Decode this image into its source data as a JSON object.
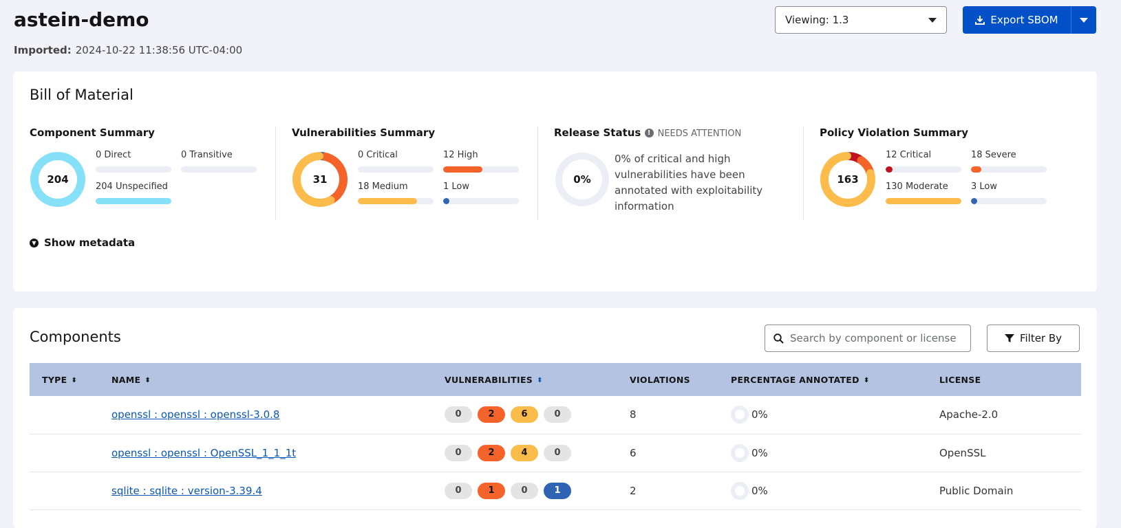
{
  "header": {
    "title": "astein-demo",
    "imported_label": "Imported:",
    "imported_value": "2024-10-22 11:38:56 UTC-04:00",
    "viewing": "Viewing: 1.3",
    "export_label": "Export SBOM"
  },
  "bom": {
    "title": "Bill of Material",
    "show_metadata": "Show metadata",
    "component_summary": {
      "title": "Component Summary",
      "total": "204",
      "items": [
        {
          "label": "0 Direct",
          "value": 0,
          "color": "#86e0f8"
        },
        {
          "label": "0 Transitive",
          "value": 0,
          "color": "#86e0f8"
        },
        {
          "label": "204 Unspecified",
          "value": 204,
          "color": "#86e0f8"
        }
      ],
      "max": 204
    },
    "vulnerabilities_summary": {
      "title": "Vulnerabilities Summary",
      "total": "31",
      "items": [
        {
          "label": "0 Critical",
          "value": 0,
          "color": "#c0131f"
        },
        {
          "label": "12 High",
          "value": 12,
          "color": "#f4632a"
        },
        {
          "label": "18 Medium",
          "value": 18,
          "color": "#fcbc4c"
        },
        {
          "label": "1 Low",
          "value": 1,
          "color": "#2f63b3"
        }
      ],
      "max": 23
    },
    "release_status": {
      "title": "Release Status",
      "status": "NEEDS ATTENTION",
      "percent": "0%",
      "text": "0% of critical and high vulnerabilities have been annotated with exploitability information"
    },
    "policy_violation_summary": {
      "title": "Policy Violation Summary",
      "total": "163",
      "items": [
        {
          "label": "12 Critical",
          "value": 12,
          "color": "#c0131f"
        },
        {
          "label": "18 Severe",
          "value": 18,
          "color": "#f4632a"
        },
        {
          "label": "130 Moderate",
          "value": 130,
          "color": "#fcbc4c"
        },
        {
          "label": "3 Low",
          "value": 3,
          "color": "#2f63b3"
        }
      ],
      "max": 130
    }
  },
  "components": {
    "title": "Components",
    "search_placeholder": "Search by component or license",
    "filter_label": "Filter By",
    "columns": [
      "TYPE",
      "NAME",
      "VULNERABILITIES",
      "VIOLATIONS",
      "PERCENTAGE ANNOTATED",
      "LICENSE"
    ],
    "rows": [
      {
        "type": "",
        "name": "openssl : openssl : openssl-3.0.8",
        "vulns": [
          "0",
          "2",
          "6",
          "0"
        ],
        "violations": "8",
        "annotated": "0%",
        "license": "Apache-2.0"
      },
      {
        "type": "",
        "name": "openssl : openssl : OpenSSL_1_1_1t",
        "vulns": [
          "0",
          "2",
          "4",
          "0"
        ],
        "violations": "6",
        "annotated": "0%",
        "license": "OpenSSL"
      },
      {
        "type": "",
        "name": "sqlite : sqlite : version-3.39.4",
        "vulns": [
          "0",
          "1",
          "0",
          "1"
        ],
        "violations": "2",
        "annotated": "0%",
        "license": "Public Domain"
      }
    ]
  },
  "colors": {
    "accent": "#0250c8",
    "header_bg": "#b3c3e1",
    "critical": "#c0131f",
    "high": "#f4632a",
    "medium": "#fcbc4c",
    "low": "#2f63b3",
    "component": "#86e0f8"
  }
}
